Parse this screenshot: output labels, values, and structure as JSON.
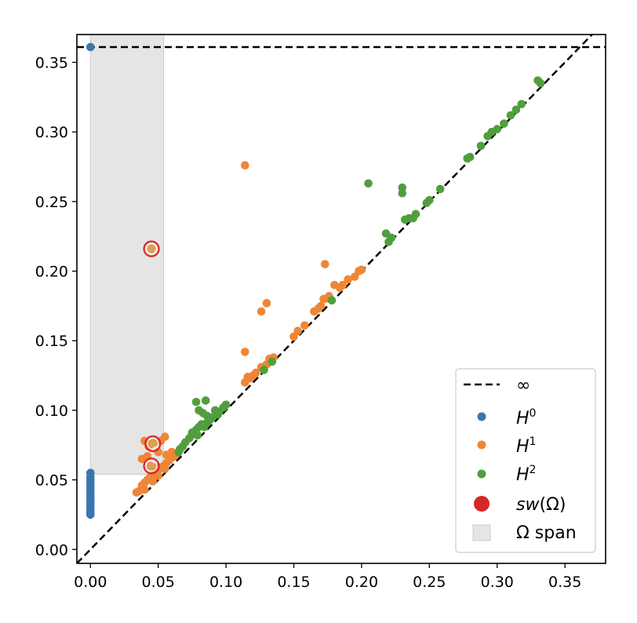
{
  "chart_data": {
    "type": "scatter",
    "title": "",
    "xlabel": "",
    "ylabel": "",
    "xlim": [
      -0.01,
      0.38
    ],
    "ylim": [
      -0.01,
      0.37
    ],
    "x_ticks": [
      "0.00",
      "0.05",
      "0.10",
      "0.15",
      "0.20",
      "0.25",
      "0.30",
      "0.35"
    ],
    "y_ticks": [
      "0.00",
      "0.05",
      "0.10",
      "0.15",
      "0.20",
      "0.25",
      "0.30",
      "0.35"
    ],
    "grid": false,
    "legend_position": "bottom-right",
    "infinity_line_y": 0.361,
    "diagonal": true,
    "omega_span": {
      "x": [
        0.0,
        0.054
      ],
      "y": [
        0.054,
        0.37
      ]
    },
    "colors": {
      "H0": "#3b75af",
      "H1": "#ef8636",
      "H2": "#519e3e",
      "sw": "#d62728",
      "span": "#e5e5e5",
      "line": "#000000"
    },
    "series": [
      {
        "name": "H^0",
        "points": [
          [
            0,
            0.361
          ],
          [
            0,
            0.055
          ],
          [
            0,
            0.052
          ],
          [
            0,
            0.05
          ],
          [
            0,
            0.048
          ],
          [
            0,
            0.046
          ],
          [
            0,
            0.044
          ],
          [
            0,
            0.042
          ],
          [
            0,
            0.04
          ],
          [
            0,
            0.038
          ],
          [
            0,
            0.036
          ],
          [
            0,
            0.034
          ],
          [
            0,
            0.032
          ],
          [
            0,
            0.03
          ],
          [
            0,
            0.028
          ],
          [
            0,
            0.026
          ],
          [
            0,
            0.025
          ]
        ]
      },
      {
        "name": "H^1",
        "points": [
          [
            0.114,
            0.276
          ],
          [
            0.045,
            0.216
          ],
          [
            0.173,
            0.205
          ],
          [
            0.13,
            0.177
          ],
          [
            0.126,
            0.171
          ],
          [
            0.114,
            0.142
          ],
          [
            0.045,
            0.076
          ],
          [
            0.044,
            0.06
          ],
          [
            0.048,
            0.059
          ],
          [
            0.04,
            0.078
          ],
          [
            0.043,
            0.074
          ],
          [
            0.047,
            0.077
          ],
          [
            0.052,
            0.078
          ],
          [
            0.055,
            0.081
          ],
          [
            0.042,
            0.067
          ],
          [
            0.038,
            0.065
          ],
          [
            0.05,
            0.07
          ],
          [
            0.056,
            0.068
          ],
          [
            0.06,
            0.07
          ],
          [
            0.036,
            0.042
          ],
          [
            0.038,
            0.046
          ],
          [
            0.04,
            0.048
          ],
          [
            0.042,
            0.05
          ],
          [
            0.044,
            0.052
          ],
          [
            0.046,
            0.054
          ],
          [
            0.048,
            0.055
          ],
          [
            0.05,
            0.057
          ],
          [
            0.052,
            0.059
          ],
          [
            0.054,
            0.06
          ],
          [
            0.056,
            0.062
          ],
          [
            0.058,
            0.064
          ],
          [
            0.06,
            0.066
          ],
          [
            0.062,
            0.067
          ],
          [
            0.064,
            0.069
          ],
          [
            0.034,
            0.041
          ],
          [
            0.04,
            0.043
          ],
          [
            0.046,
            0.049
          ],
          [
            0.05,
            0.053
          ],
          [
            0.055,
            0.058
          ],
          [
            0.114,
            0.12
          ],
          [
            0.116,
            0.124
          ],
          [
            0.118,
            0.123
          ],
          [
            0.12,
            0.125
          ],
          [
            0.122,
            0.127
          ],
          [
            0.126,
            0.131
          ],
          [
            0.13,
            0.133
          ],
          [
            0.132,
            0.137
          ],
          [
            0.135,
            0.138
          ],
          [
            0.128,
            0.129
          ],
          [
            0.15,
            0.153
          ],
          [
            0.153,
            0.157
          ],
          [
            0.158,
            0.161
          ],
          [
            0.165,
            0.171
          ],
          [
            0.168,
            0.173
          ],
          [
            0.17,
            0.175
          ],
          [
            0.172,
            0.18
          ],
          [
            0.176,
            0.182
          ],
          [
            0.18,
            0.19
          ],
          [
            0.184,
            0.188
          ],
          [
            0.186,
            0.19
          ],
          [
            0.19,
            0.194
          ],
          [
            0.195,
            0.196
          ],
          [
            0.198,
            0.2
          ],
          [
            0.2,
            0.201
          ],
          [
            0.173,
            0.18
          ]
        ]
      },
      {
        "name": "H^2",
        "points": [
          [
            0.205,
            0.263
          ],
          [
            0.23,
            0.26
          ],
          [
            0.23,
            0.256
          ],
          [
            0.218,
            0.227
          ],
          [
            0.222,
            0.224
          ],
          [
            0.22,
            0.221
          ],
          [
            0.232,
            0.237
          ],
          [
            0.235,
            0.238
          ],
          [
            0.238,
            0.238
          ],
          [
            0.24,
            0.241
          ],
          [
            0.248,
            0.249
          ],
          [
            0.25,
            0.251
          ],
          [
            0.258,
            0.259
          ],
          [
            0.278,
            0.281
          ],
          [
            0.28,
            0.282
          ],
          [
            0.288,
            0.29
          ],
          [
            0.293,
            0.297
          ],
          [
            0.296,
            0.3
          ],
          [
            0.3,
            0.302
          ],
          [
            0.305,
            0.306
          ],
          [
            0.31,
            0.312
          ],
          [
            0.314,
            0.316
          ],
          [
            0.318,
            0.32
          ],
          [
            0.33,
            0.337
          ],
          [
            0.332,
            0.335
          ],
          [
            0.178,
            0.179
          ],
          [
            0.128,
            0.129
          ],
          [
            0.134,
            0.135
          ],
          [
            0.078,
            0.106
          ],
          [
            0.085,
            0.107
          ],
          [
            0.08,
            0.1
          ],
          [
            0.083,
            0.098
          ],
          [
            0.086,
            0.096
          ],
          [
            0.09,
            0.095
          ],
          [
            0.094,
            0.097
          ],
          [
            0.098,
            0.102
          ],
          [
            0.1,
            0.104
          ],
          [
            0.092,
            0.1
          ],
          [
            0.073,
            0.08
          ],
          [
            0.075,
            0.084
          ],
          [
            0.078,
            0.086
          ],
          [
            0.08,
            0.088
          ],
          [
            0.082,
            0.09
          ],
          [
            0.084,
            0.088
          ],
          [
            0.086,
            0.091
          ],
          [
            0.07,
            0.077
          ],
          [
            0.068,
            0.074
          ],
          [
            0.066,
            0.072
          ],
          [
            0.065,
            0.07
          ],
          [
            0.076,
            0.083
          ],
          [
            0.079,
            0.082
          ],
          [
            0.088,
            0.093
          ],
          [
            0.095,
            0.099
          ]
        ]
      }
    ],
    "sw_points": [
      [
        0.045,
        0.216
      ],
      [
        0.046,
        0.076
      ],
      [
        0.045,
        0.06
      ]
    ],
    "legend": {
      "entries": [
        "∞",
        "H^0",
        "H^1",
        "H^2",
        "sw(Ω)",
        "Ω span"
      ]
    }
  }
}
